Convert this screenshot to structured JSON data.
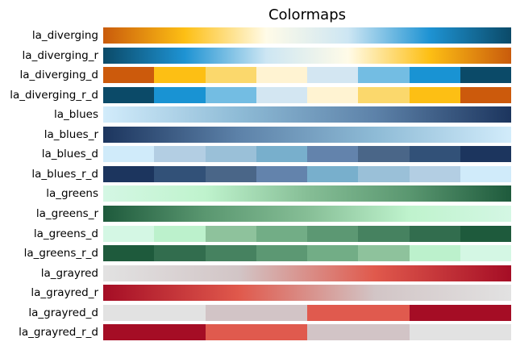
{
  "figure": {
    "title": "Colormaps"
  },
  "colormaps": [
    {
      "label": "la_diverging",
      "kind": "continuous",
      "colors": [
        "#c95b0c",
        "#fdbf14",
        "#fffbe8",
        "#cde6f3",
        "#1e93d3",
        "#0b4a68"
      ]
    },
    {
      "label": "la_diverging_r",
      "kind": "continuous",
      "colors": [
        "#0b4a68",
        "#1e93d3",
        "#cde6f3",
        "#fffbe8",
        "#fdbf14",
        "#c95b0c"
      ]
    },
    {
      "label": "la_diverging_d",
      "kind": "discrete",
      "colors": [
        "#cc5a0c",
        "#fdbf14",
        "#fbd86c",
        "#fff3d2",
        "#d3e6f2",
        "#73bde3",
        "#1993d3",
        "#0b4a68"
      ]
    },
    {
      "label": "la_diverging_r_d",
      "kind": "discrete",
      "colors": [
        "#0b4a68",
        "#1993d3",
        "#73bde3",
        "#d3e6f2",
        "#fff3d2",
        "#fbd86c",
        "#fdbf14",
        "#cc5a0c"
      ]
    },
    {
      "label": "la_blues",
      "kind": "continuous",
      "colors": [
        "#d2ecfb",
        "#8ebbd6",
        "#5d82a9",
        "#1c355e"
      ]
    },
    {
      "label": "la_blues_r",
      "kind": "continuous",
      "colors": [
        "#1c355e",
        "#5d82a9",
        "#8ebbd6",
        "#d2ecfb"
      ]
    },
    {
      "label": "la_blues_d",
      "kind": "discrete",
      "colors": [
        "#d0ebfa",
        "#b3cee3",
        "#9ac0d8",
        "#78afcc",
        "#6383ac",
        "#4a6688",
        "#325178",
        "#1c355e"
      ]
    },
    {
      "label": "la_blues_r_d",
      "kind": "discrete",
      "colors": [
        "#1c355e",
        "#325178",
        "#4a6688",
        "#6383ac",
        "#78afcc",
        "#9ac0d8",
        "#b3cee3",
        "#d0ebfa"
      ]
    },
    {
      "label": "la_greens",
      "kind": "continuous",
      "colors": [
        "#d4f7e4",
        "#bff3cd",
        "#86be96",
        "#5a9770",
        "#1e5a3c"
      ]
    },
    {
      "label": "la_greens_r",
      "kind": "continuous",
      "colors": [
        "#1e5a3c",
        "#5a9770",
        "#86be96",
        "#bff3cd",
        "#d4f7e4"
      ]
    },
    {
      "label": "la_greens_d",
      "kind": "discrete",
      "colors": [
        "#d4f7e4",
        "#bcf1cc",
        "#8ec29c",
        "#72ad86",
        "#5c9873",
        "#468260",
        "#326d4e",
        "#1e5a3c"
      ]
    },
    {
      "label": "la_greens_r_d",
      "kind": "discrete",
      "colors": [
        "#1e5a3c",
        "#326d4e",
        "#468260",
        "#5c9873",
        "#72ad86",
        "#8ec29c",
        "#bcf1cc",
        "#d4f7e4"
      ]
    },
    {
      "label": "la_grayred",
      "kind": "continuous",
      "colors": [
        "#e2e2e2",
        "#d2c5c6",
        "#e0594c",
        "#a50d25"
      ]
    },
    {
      "label": "la_grayred_r",
      "kind": "continuous",
      "colors": [
        "#a50d25",
        "#e0594c",
        "#d2c5c6",
        "#e2e2e2"
      ]
    },
    {
      "label": "la_grayred_d",
      "kind": "discrete",
      "colors": [
        "#e2e2e2",
        "#d2c4c6",
        "#e05a4e",
        "#a50d25"
      ]
    },
    {
      "label": "la_grayred_r_d",
      "kind": "discrete",
      "colors": [
        "#a50d25",
        "#e05a4e",
        "#d2c4c6",
        "#e2e2e2"
      ]
    }
  ]
}
